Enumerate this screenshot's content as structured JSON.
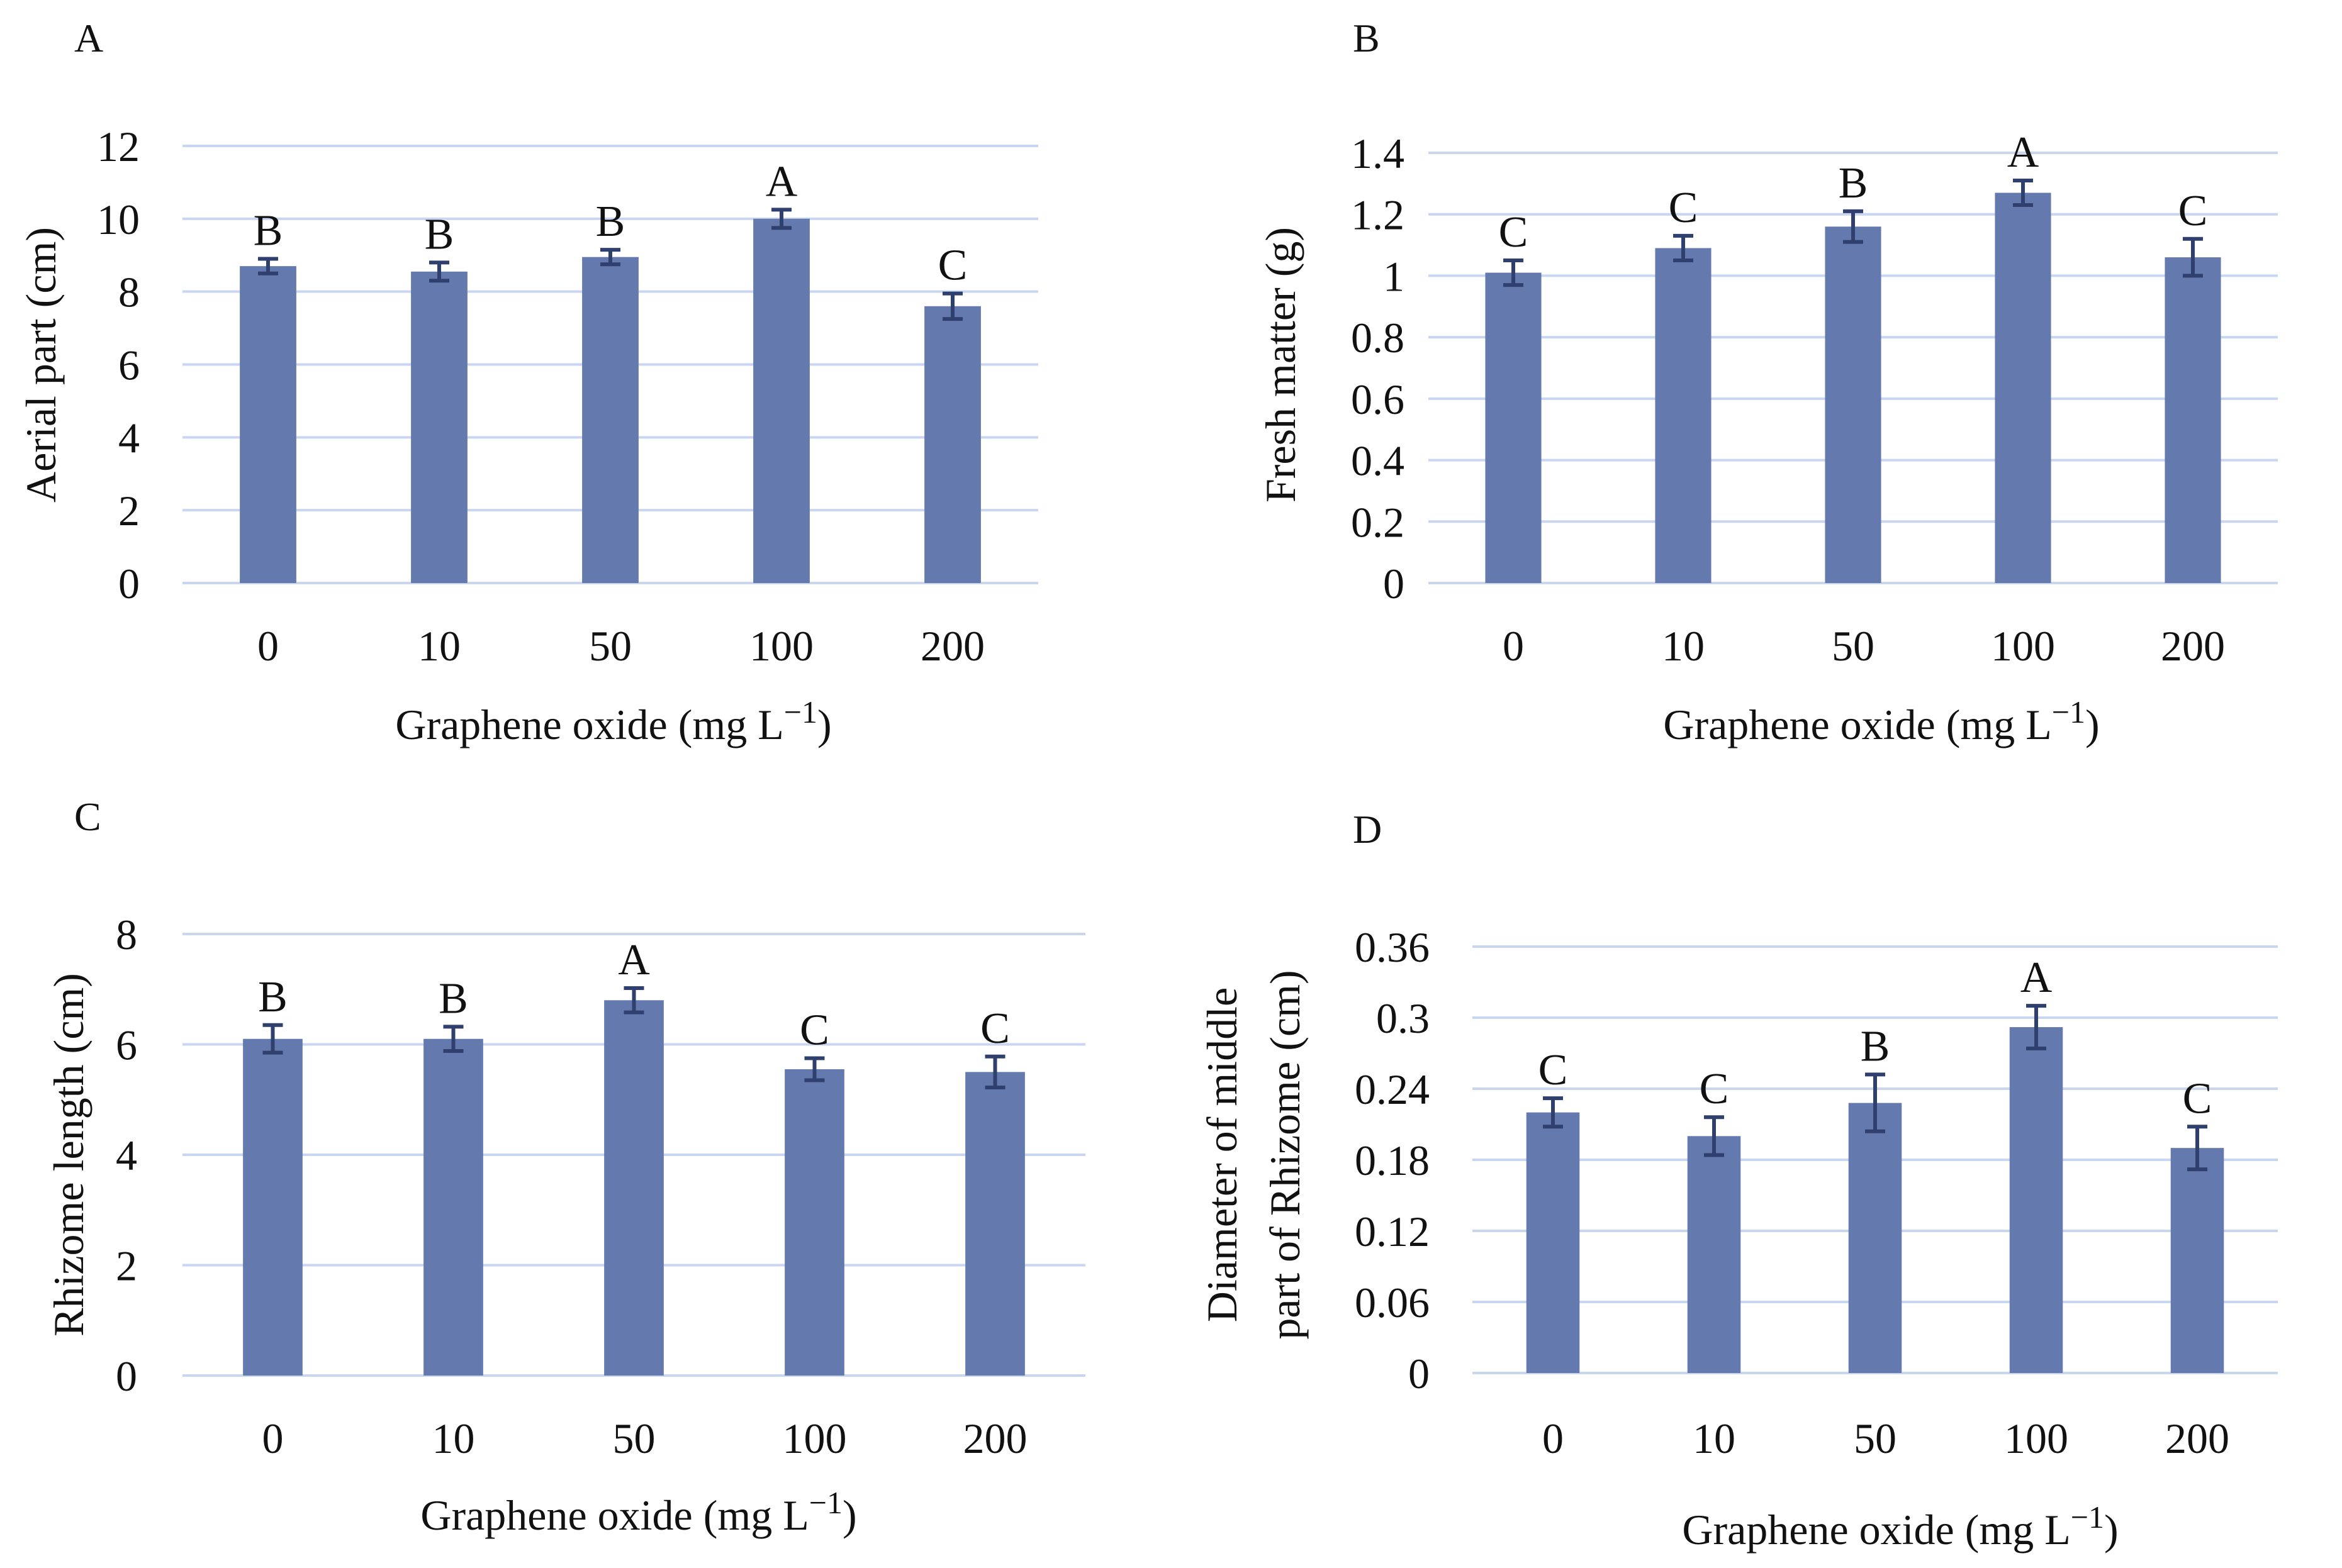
{
  "chart_data": [
    {
      "type": "bar",
      "panel": "A",
      "categories": [
        "0",
        "10",
        "50",
        "100",
        "200"
      ],
      "values": [
        8.7,
        8.55,
        8.95,
        10.0,
        7.6
      ],
      "errors": [
        0.2,
        0.25,
        0.2,
        0.25,
        0.35
      ],
      "letters": [
        "B",
        "B",
        "B",
        "A",
        "C"
      ],
      "xlabel": "Graphene  oxide (mg L",
      "xlabel_sup": "−1",
      "xlabel_suffix": ")",
      "ylabel": "Aerial  part  (cm)",
      "ylim": [
        0,
        12
      ],
      "yticks": [
        "0",
        "2",
        "4",
        "6",
        "8",
        "10",
        "12"
      ],
      "grid": true,
      "bar_color": "#6479ae"
    },
    {
      "type": "bar",
      "panel": "B",
      "categories": [
        "0",
        "10",
        "50",
        "100",
        "200"
      ],
      "values": [
        1.01,
        1.09,
        1.16,
        1.27,
        1.06
      ],
      "errors": [
        0.04,
        0.04,
        0.05,
        0.04,
        0.06
      ],
      "letters": [
        "C",
        "C",
        "B",
        "A",
        "C"
      ],
      "xlabel": "Graphene  oxide (mg L",
      "xlabel_sup": "−1",
      "xlabel_suffix": ")",
      "ylabel": "Fresh matter  (g)",
      "ylim": [
        0,
        1.4
      ],
      "yticks": [
        "0",
        "0.2",
        "0.4",
        "0.6",
        "0.8",
        "1",
        "1.2",
        "1.4"
      ],
      "grid": true,
      "bar_color": "#6479ae"
    },
    {
      "type": "bar",
      "panel": "C",
      "categories": [
        "0",
        "10",
        "50",
        "100",
        "200"
      ],
      "values": [
        6.1,
        6.1,
        6.8,
        5.55,
        5.5
      ],
      "errors": [
        0.25,
        0.22,
        0.22,
        0.2,
        0.28
      ],
      "letters": [
        "B",
        "B",
        "A",
        "C",
        "C"
      ],
      "xlabel": "Graphene  oxide (mg L",
      "xlabel_sup": "−1",
      "xlabel_suffix": ")",
      "ylabel": "Rhizome length  (cm)",
      "ylim": [
        0,
        8
      ],
      "yticks": [
        "0",
        "2",
        "4",
        "6",
        "8"
      ],
      "grid": true,
      "bar_color": "#6479ae"
    },
    {
      "type": "bar",
      "panel": "D",
      "categories": [
        "0",
        "10",
        "50",
        "100",
        "200"
      ],
      "values": [
        0.22,
        0.2,
        0.228,
        0.292,
        0.19
      ],
      "errors": [
        0.012,
        0.016,
        0.024,
        0.018,
        0.018
      ],
      "letters": [
        "C",
        "C",
        "B",
        "A",
        "C"
      ],
      "xlabel": "Graphene  oxide (mg L",
      "xlabel_sup": "−1",
      "xlabel_suffix": ")",
      "ylabel": "Diameter  of middle",
      "ylabel2": "part of Rhizome (cm)",
      "ylim": [
        0,
        0.36
      ],
      "yticks": [
        "0",
        "0.06",
        "0.12",
        "0.18",
        "0.24",
        "0.3",
        "0.36"
      ],
      "grid": true,
      "bar_color": "#6479ae"
    }
  ],
  "colors": {
    "bar": "#6479ae",
    "error_bar": "#2f3f6e",
    "grid": "#c9d6f2"
  }
}
